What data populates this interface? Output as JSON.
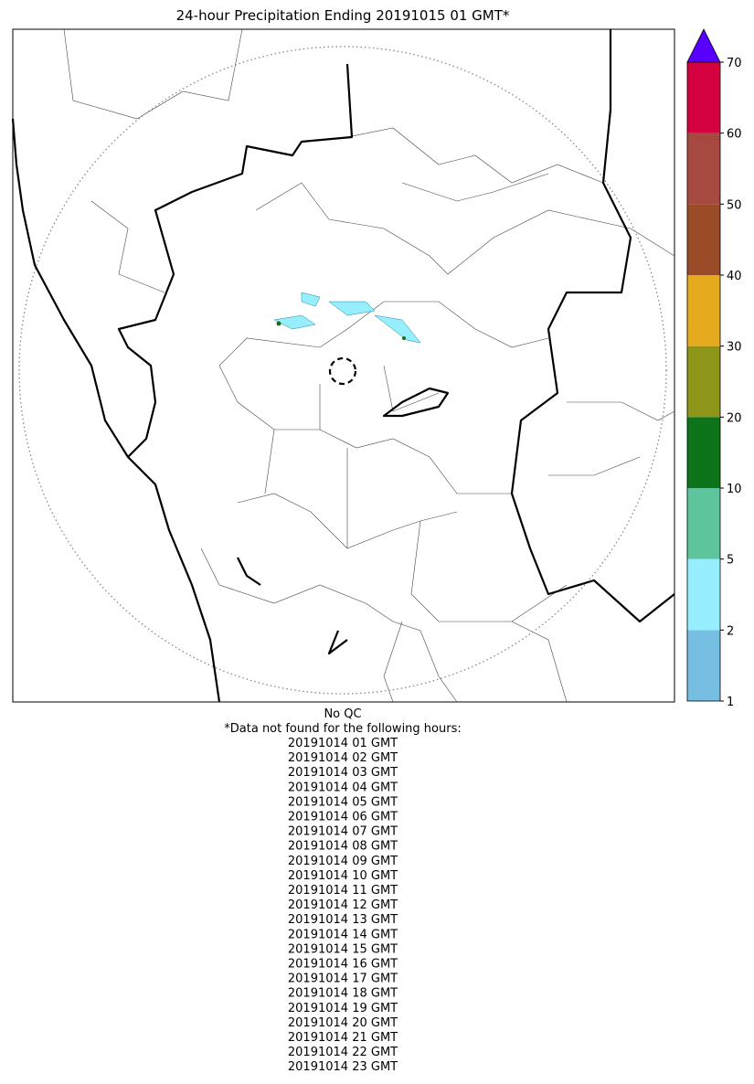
{
  "title": "24-hour Precipitation Ending 20191015 01 GMT*",
  "colorbar": {
    "ticks": [
      1,
      2,
      5,
      10,
      20,
      30,
      40,
      50,
      60,
      70
    ],
    "colors": [
      "#76bfe3",
      "#97eefe",
      "#5ec49b",
      "#0d741c",
      "#8d9619",
      "#e6aa1e",
      "#9a4c29",
      "#a64a41",
      "#d5003f"
    ],
    "extend_color": "#5700ff"
  },
  "footer": {
    "qc": "No QC",
    "note": "*Data not found for the following hours:",
    "hours": [
      "20191014 01 GMT",
      "20191014 02 GMT",
      "20191014 03 GMT",
      "20191014 04 GMT",
      "20191014 05 GMT",
      "20191014 06 GMT",
      "20191014 07 GMT",
      "20191014 08 GMT",
      "20191014 09 GMT",
      "20191014 10 GMT",
      "20191014 11 GMT",
      "20191014 12 GMT",
      "20191014 13 GMT",
      "20191014 14 GMT",
      "20191014 15 GMT",
      "20191014 16 GMT",
      "20191014 17 GMT",
      "20191014 18 GMT",
      "20191014 19 GMT",
      "20191014 20 GMT",
      "20191014 21 GMT",
      "20191014 22 GMT",
      "20191014 23 GMT"
    ]
  }
}
